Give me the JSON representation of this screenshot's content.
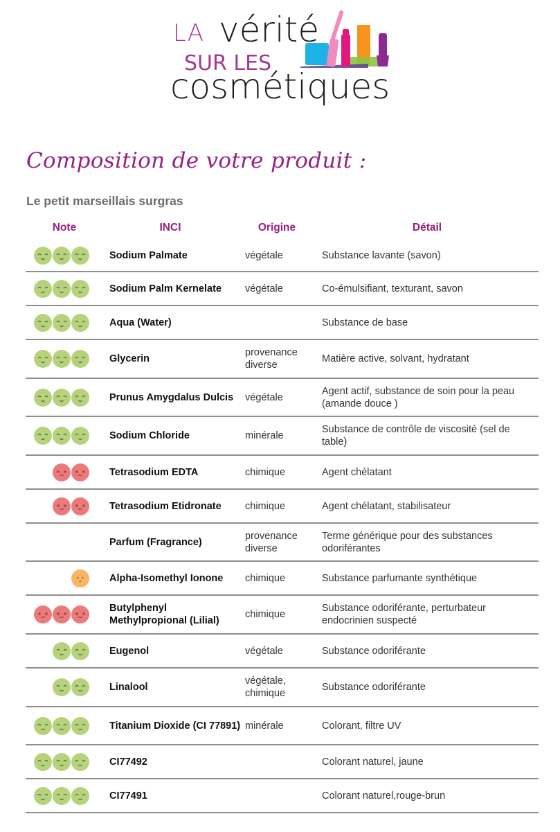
{
  "logo": {
    "line1_small": "LA",
    "line1_big": "vérité",
    "line2": "SUR LES",
    "line3": "cosmétiques",
    "colors": {
      "purple": "#a8388e",
      "dark": "#1e1e1e",
      "blue": "#1fb2e6",
      "pink": "#e94c9b",
      "magenta": "#e3187f",
      "orange": "#f7941d",
      "green": "#8cc63f",
      "violet": "#8b2a8f"
    }
  },
  "page": {
    "section_title": "Composition de votre produit :",
    "product_name": "Le petit marseillais surgras"
  },
  "colors": {
    "accent": "#96217e",
    "face_good": "#b6d37b",
    "face_bad": "#ec7a7a",
    "face_neutral": "#f9b466",
    "separator": "#8e8e8e"
  },
  "table": {
    "headers": {
      "note": "Note",
      "inci": "INCI",
      "origine": "Origine",
      "detail": "Détail"
    },
    "rows": [
      {
        "note_type": "good",
        "note_count": 3,
        "inci": "Sodium Palmate",
        "origine": "végétale",
        "detail": "Substance lavante (savon)",
        "height": 47
      },
      {
        "note_type": "good",
        "note_count": 3,
        "inci": "Sodium Palm Kernelate",
        "origine": "végétale",
        "detail": "Co-émulsifiant, texturant, savon",
        "height": 49
      },
      {
        "note_type": "good",
        "note_count": 3,
        "inci": "Aqua (Water)",
        "origine": "",
        "detail": "Substance de base",
        "height": 49
      },
      {
        "note_type": "good",
        "note_count": 3,
        "inci": "Glycerin",
        "origine": "provenance diverse",
        "detail": "Matière active, solvant, hydratant",
        "height": 56
      },
      {
        "note_type": "good",
        "note_count": 3,
        "inci": "Prunus Amygdalus Dulcis",
        "origine": "végétale",
        "detail": "Agent actif, substance de soin pour la peau (amande douce )",
        "height": 55
      },
      {
        "note_type": "good",
        "note_count": 3,
        "inci": "Sodium Chloride",
        "origine": "minérale",
        "detail": "Substance de contrôle de viscosité (sel de table)",
        "height": 56
      },
      {
        "note_type": "bad",
        "note_count": 2,
        "inci": "Tetrasodium EDTA",
        "origine": "chimique",
        "detail": "Agent chélatant",
        "height": 49
      },
      {
        "note_type": "bad",
        "note_count": 2,
        "inci": "Tetrasodium Etidronate",
        "origine": "chimique",
        "detail": "Agent chélatant, stabilisateur",
        "height": 49
      },
      {
        "note_type": "none",
        "note_count": 0,
        "inci": "Parfum (Fragrance)",
        "origine": "provenance diverse",
        "detail": "Terme générique pour des substances odoriférantes",
        "height": 55
      },
      {
        "note_type": "neutral",
        "note_count": 1,
        "inci": "Alpha-Isomethyl Ionone",
        "origine": "chimique",
        "detail": "Substance parfumante synthétique",
        "height": 49
      },
      {
        "note_type": "bad",
        "note_count": 3,
        "inci": "Butylphenyl Methylpropional (Lilial)",
        "origine": "chimique",
        "detail": "Substance odoriférante, perturbateur endocrinien suspecté",
        "height": 56
      },
      {
        "note_type": "good",
        "note_count": 2,
        "inci": "Eugenol",
        "origine": "végétale",
        "detail": "Substance odoriférante",
        "height": 49
      },
      {
        "note_type": "good",
        "note_count": 2,
        "inci": "Linalool",
        "origine": "végétale, chimique",
        "detail": "Substance odoriférante",
        "height": 56
      },
      {
        "note_type": "good",
        "note_count": 3,
        "inci": "Titanium Dioxide (CI 77891)",
        "origine": "minérale",
        "detail": "Colorant, filtre UV",
        "height": 55
      },
      {
        "note_type": "good",
        "note_count": 3,
        "inci": "CI77492",
        "origine": "",
        "detail": "Colorant naturel, jaune",
        "height": 49
      },
      {
        "note_type": "good",
        "note_count": 3,
        "inci": "CI77491",
        "origine": "",
        "detail": "Colorant naturel,rouge-brun",
        "height": 49
      }
    ]
  }
}
